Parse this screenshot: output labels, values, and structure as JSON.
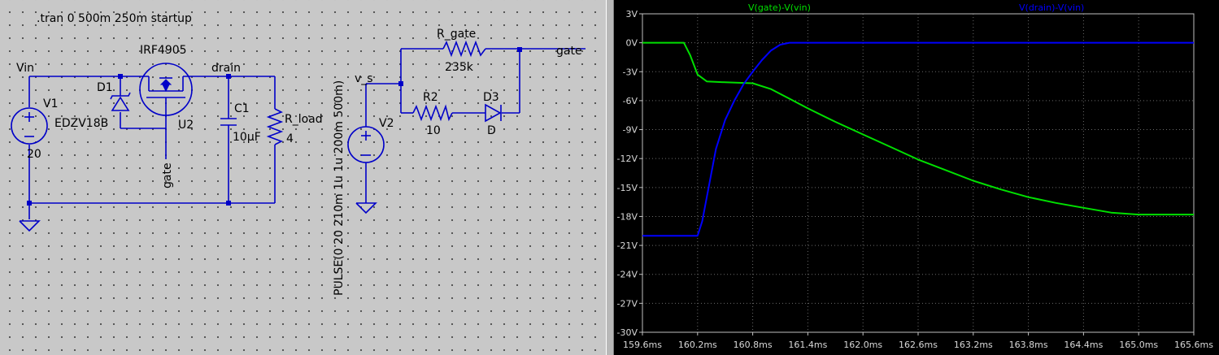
{
  "schematic": {
    "directive": ".tran 0 500m 250m startup",
    "nets": {
      "vin": "Vin",
      "drain": "drain",
      "gate_bottom": "gate",
      "gate_right": "gate",
      "v_s": "v_s"
    },
    "components": {
      "v1": {
        "name": "V1",
        "value": "20"
      },
      "d1": {
        "name": "D1",
        "value": "EDZV18B"
      },
      "u2": {
        "name": "U2",
        "value": "IRF4905"
      },
      "c1": {
        "name": "C1",
        "value": "10µF"
      },
      "r_load": {
        "name": "R_load",
        "value": "4"
      },
      "v2": {
        "name": "V2",
        "value": "PULSE(0 20 210m 1u 1u 200m 500m)"
      },
      "r_gate": {
        "name": "R_gate",
        "value": "235k"
      },
      "r2": {
        "name": "R2",
        "value": "10"
      },
      "d3": {
        "name": "D3",
        "value": "D"
      }
    }
  },
  "plot": {
    "colors": {
      "background": "#000000",
      "green": "#00e000",
      "blue": "#0000ff",
      "axis": "#c0c0c0",
      "grid": "#6a6a6a"
    },
    "traces": [
      {
        "label": "V(gate)-V(vin)",
        "color": "#00e000"
      },
      {
        "label": "V(drain)-V(vin)",
        "color": "#0000ff"
      }
    ],
    "y_ticks": [
      "3V",
      "0V",
      "-3V",
      "-6V",
      "-9V",
      "-12V",
      "-15V",
      "-18V",
      "-21V",
      "-24V",
      "-27V",
      "-30V"
    ],
    "x_ticks": [
      "159.6ms",
      "160.2ms",
      "160.8ms",
      "161.4ms",
      "162.0ms",
      "162.6ms",
      "163.2ms",
      "163.8ms",
      "164.4ms",
      "165.0ms",
      "165.6ms"
    ]
  },
  "chart_data": {
    "type": "line",
    "title": "",
    "xlabel": "",
    "ylabel": "",
    "xlim": [
      159.6,
      165.6
    ],
    "ylim": [
      -30,
      3
    ],
    "x_unit": "ms",
    "y_unit": "V",
    "grid": true,
    "legend": "top",
    "series": [
      {
        "name": "V(gate)-V(vin)",
        "color": "#00e000",
        "points": [
          [
            159.6,
            0
          ],
          [
            160.05,
            0
          ],
          [
            160.12,
            -1.3
          ],
          [
            160.2,
            -3.3
          ],
          [
            160.3,
            -4.0
          ],
          [
            160.5,
            -4.1
          ],
          [
            160.8,
            -4.2
          ],
          [
            161.0,
            -4.8
          ],
          [
            161.2,
            -5.8
          ],
          [
            161.4,
            -6.8
          ],
          [
            161.7,
            -8.2
          ],
          [
            162.0,
            -9.5
          ],
          [
            162.3,
            -10.8
          ],
          [
            162.6,
            -12.1
          ],
          [
            162.9,
            -13.2
          ],
          [
            163.2,
            -14.3
          ],
          [
            163.5,
            -15.2
          ],
          [
            163.8,
            -16.0
          ],
          [
            164.1,
            -16.6
          ],
          [
            164.4,
            -17.1
          ],
          [
            164.7,
            -17.6
          ],
          [
            165.0,
            -17.8
          ],
          [
            165.3,
            -17.8
          ],
          [
            165.6,
            -17.8
          ]
        ]
      },
      {
        "name": "V(drain)-V(vin)",
        "color": "#0000ff",
        "points": [
          [
            159.6,
            -20
          ],
          [
            160.2,
            -20
          ],
          [
            160.25,
            -18.5
          ],
          [
            160.32,
            -15
          ],
          [
            160.4,
            -11
          ],
          [
            160.5,
            -8
          ],
          [
            160.6,
            -6
          ],
          [
            160.7,
            -4.3
          ],
          [
            160.8,
            -3
          ],
          [
            160.9,
            -1.8
          ],
          [
            161.0,
            -0.8
          ],
          [
            161.1,
            -0.2
          ],
          [
            161.2,
            0
          ],
          [
            161.4,
            0
          ],
          [
            165.6,
            0
          ]
        ]
      }
    ]
  }
}
